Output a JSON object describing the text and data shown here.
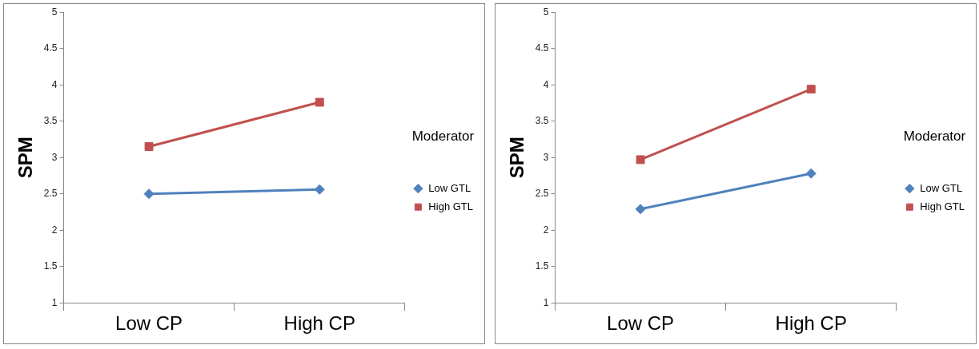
{
  "chart_data": [
    {
      "type": "line",
      "ylabel": "SPM",
      "legend_title": "Moderator",
      "categories": [
        "Low CP",
        "High CP"
      ],
      "ylim": [
        1,
        5
      ],
      "yticks": [
        1,
        1.5,
        2,
        2.5,
        3,
        3.5,
        4,
        4.5,
        5
      ],
      "grid": false,
      "legend": "right",
      "series": [
        {
          "name": "Low GTL",
          "color": "#4f81bd",
          "marker": "diamond",
          "values": [
            2.5,
            2.56
          ]
        },
        {
          "name": "High GTL",
          "color": "#c0504d",
          "marker": "square",
          "values": [
            3.15,
            3.76
          ]
        }
      ]
    },
    {
      "type": "line",
      "ylabel": "SPM",
      "legend_title": "Moderator",
      "categories": [
        "Low CP",
        "High CP"
      ],
      "ylim": [
        1,
        5
      ],
      "yticks": [
        1,
        1.5,
        2,
        2.5,
        3,
        3.5,
        4,
        4.5,
        5
      ],
      "grid": false,
      "legend": "right",
      "series": [
        {
          "name": "Low GTL",
          "color": "#4f81bd",
          "marker": "diamond",
          "values": [
            2.29,
            2.78
          ]
        },
        {
          "name": "High GTL",
          "color": "#c0504d",
          "marker": "square",
          "values": [
            2.97,
            3.94
          ]
        }
      ]
    }
  ]
}
